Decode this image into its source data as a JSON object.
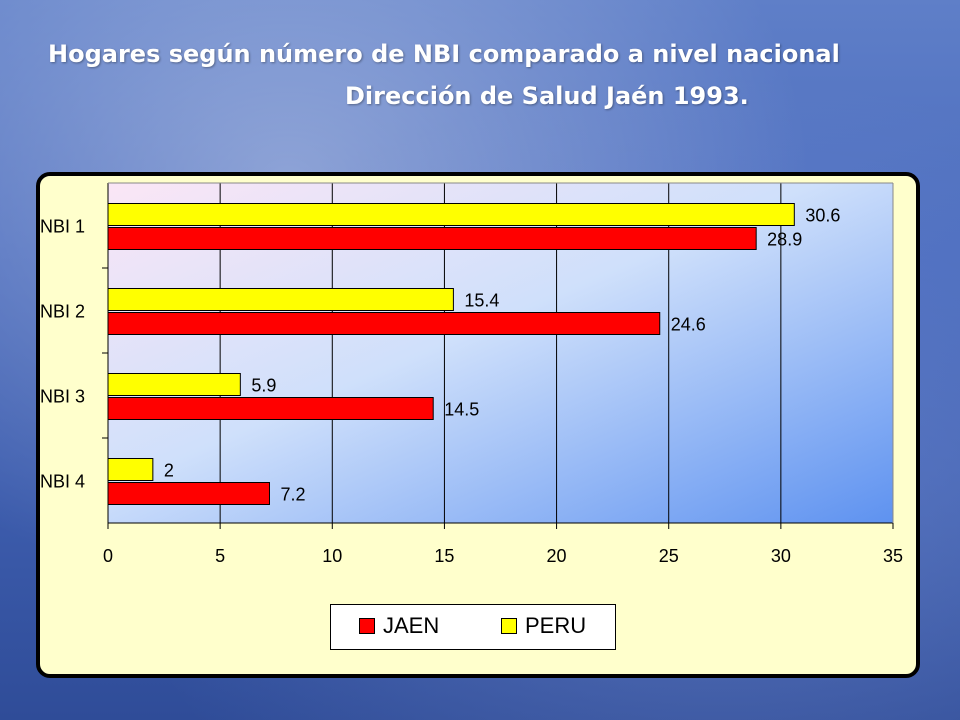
{
  "slide": {
    "title_line1": "Hogares según número de NBI comparado a nivel nacional",
    "title_line2": "Dirección de Salud Jaén 1993."
  },
  "chart_data": {
    "type": "bar",
    "orientation": "horizontal",
    "categories": [
      "NBI 1",
      "NBI 2",
      "NBI 3",
      "NBI 4"
    ],
    "series": [
      {
        "name": "PERU",
        "color": "#ffff00",
        "values": [
          30.6,
          15.4,
          5.9,
          2
        ]
      },
      {
        "name": "JAEN",
        "color": "#ff0000",
        "values": [
          28.9,
          24.6,
          14.5,
          7.2
        ]
      }
    ],
    "xlim": [
      0,
      35
    ],
    "xticks": [
      0,
      5,
      10,
      15,
      20,
      25,
      30,
      35
    ],
    "grid": true,
    "legend_position": "bottom",
    "legend_order": [
      "JAEN",
      "PERU"
    ]
  }
}
